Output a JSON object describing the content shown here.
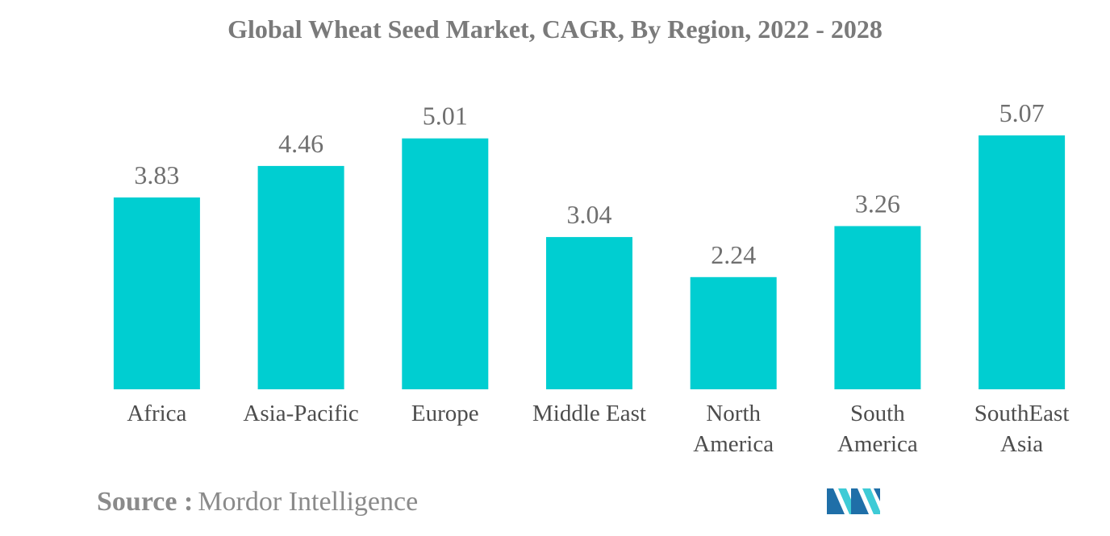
{
  "chart_data": {
    "type": "bar",
    "title": "Global Wheat Seed Market, CAGR, By Region, 2022 - 2028",
    "categories": [
      [
        "Africa"
      ],
      [
        "Asia-Pacific"
      ],
      [
        "Europe"
      ],
      [
        "Middle East"
      ],
      [
        "North",
        "America"
      ],
      [
        "South",
        "America"
      ],
      [
        "SouthEast",
        "Asia"
      ]
    ],
    "values": [
      3.83,
      4.46,
      5.01,
      3.04,
      2.24,
      3.26,
      5.07
    ],
    "value_labels": [
      "3.83",
      "4.46",
      "5.01",
      "3.04",
      "2.24",
      "3.26",
      "5.07"
    ],
    "xlabel": "",
    "ylabel": "",
    "ylim": [
      0,
      5.07
    ],
    "grid": false,
    "legend": "none",
    "bar_color": "#00CED1"
  },
  "source": {
    "label": "Source :",
    "text": "Mordor Intelligence"
  },
  "colors": {
    "logo_dark": "#1f6fa8",
    "logo_light": "#3ecbd6"
  }
}
